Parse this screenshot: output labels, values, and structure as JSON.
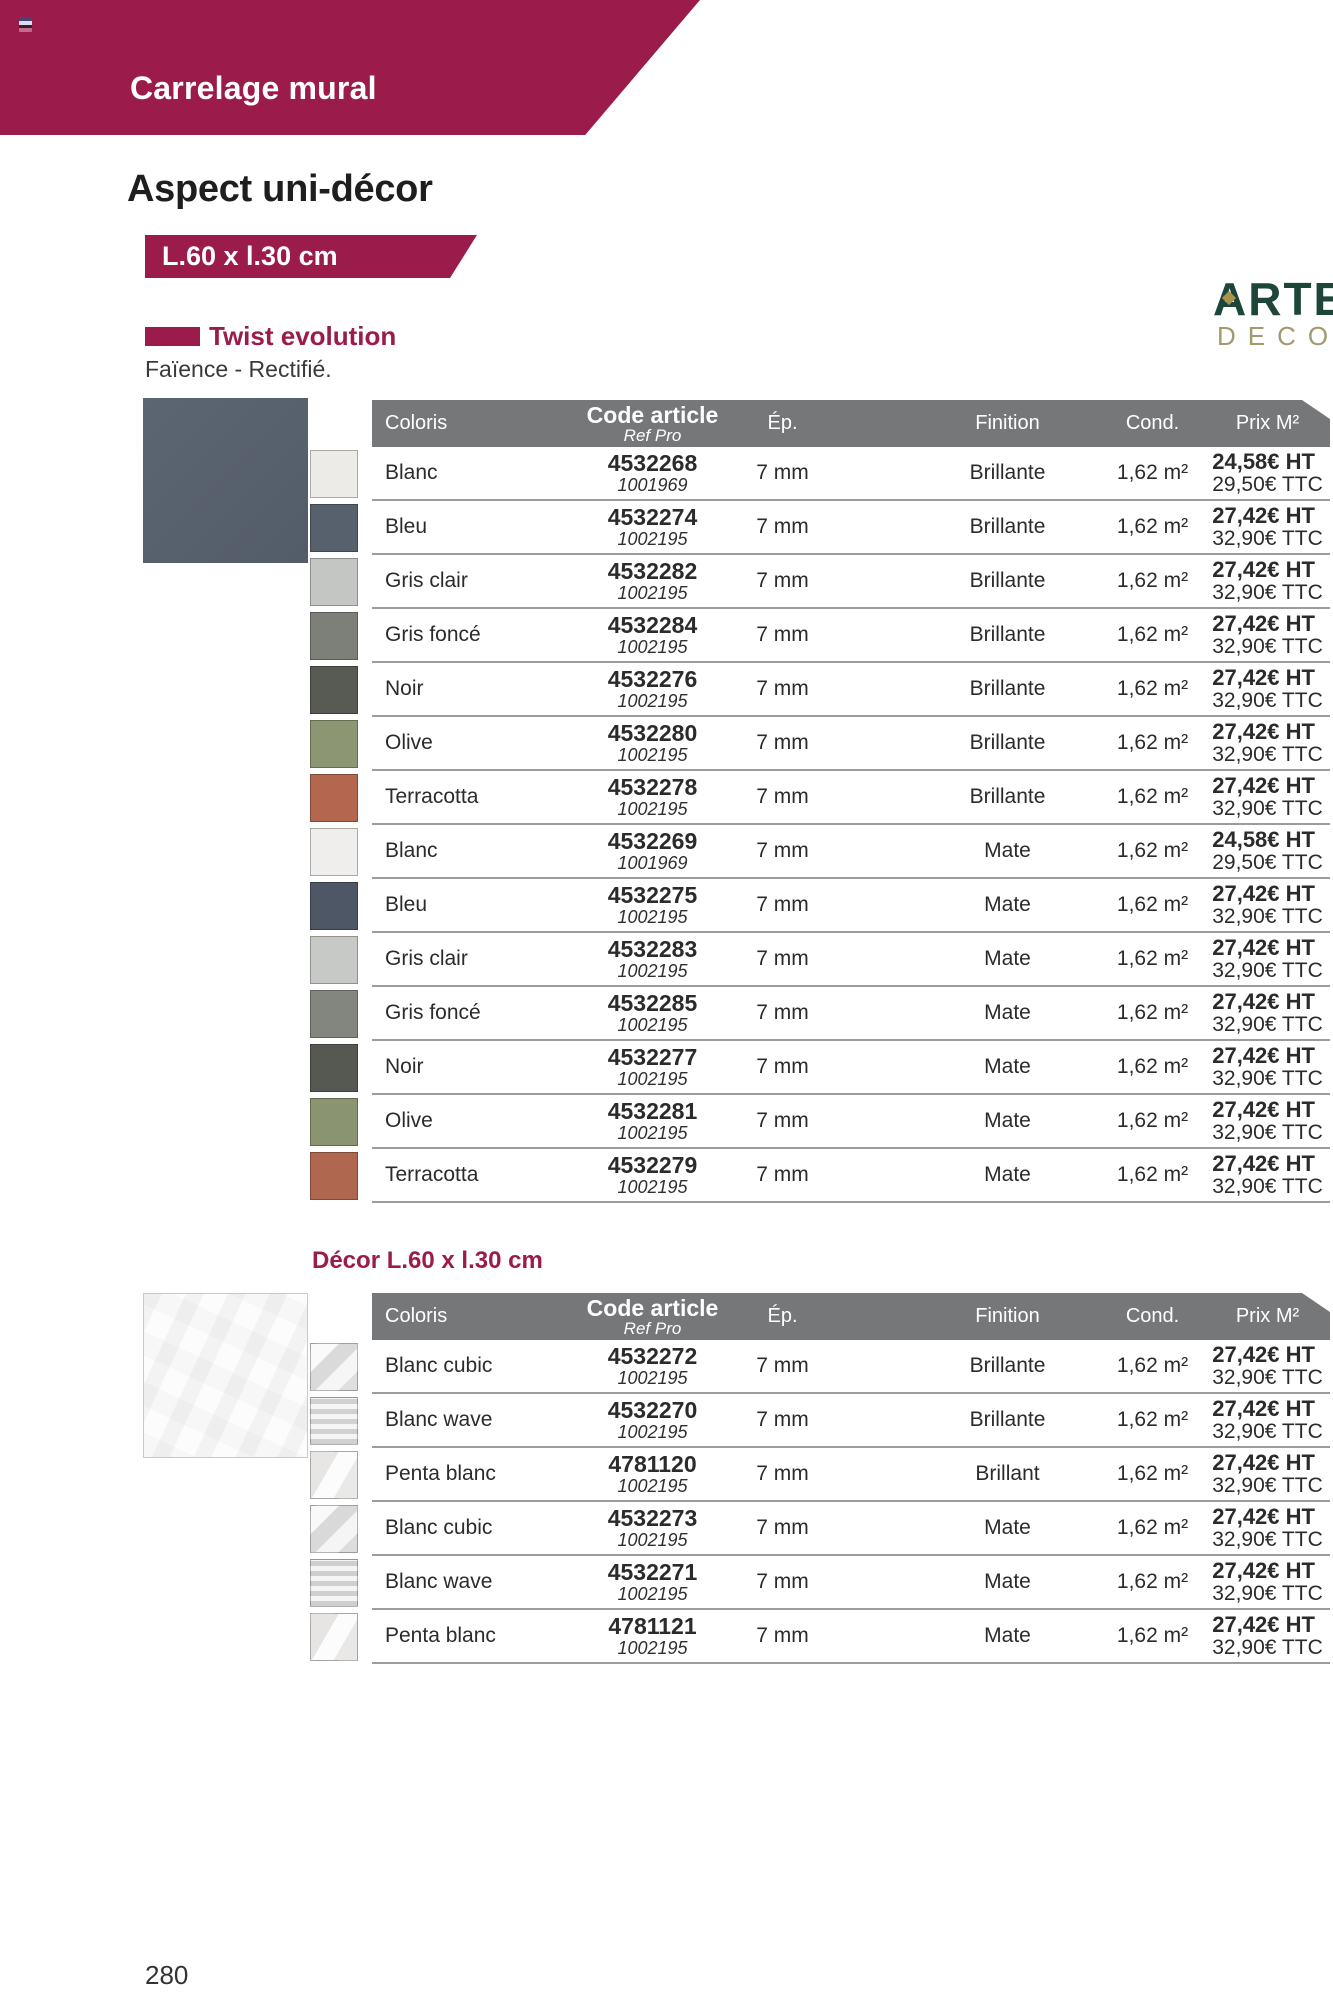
{
  "page": {
    "banner_title": "Carrelage mural",
    "section_title": "Aspect uni-décor",
    "size_label": "L.60 x l.30 cm",
    "collection_name": "Twist evolution",
    "material_note": "Faïence - Rectifié.",
    "page_number": "280"
  },
  "brand": {
    "line1": "ARTE",
    "line2": "DECO"
  },
  "colors": {
    "accent": "#9b1c4b",
    "table_header_bg": "#767779",
    "brand_green": "#1d453a",
    "brand_olive": "#a29a6d",
    "tile_photo": "#59626f"
  },
  "table_headers": {
    "coloris": "Coloris",
    "code_article": "Code article",
    "ref_pro": "Ref Pro",
    "ep": "Ép.",
    "finition": "Finition",
    "cond": "Cond.",
    "prix": "Prix M²"
  },
  "uni_table": {
    "rows": [
      {
        "coloris": "Blanc",
        "code": "4532268",
        "ref": "1001969",
        "ep": "7 mm",
        "finition": "Brillante",
        "cond": "1,62 m²",
        "prix_ht": "24,58€ HT",
        "prix_ttc": "29,50€ TTC",
        "swatch": "#edebe7",
        "texture": ""
      },
      {
        "coloris": "Bleu",
        "code": "4532274",
        "ref": "1002195",
        "ep": "7 mm",
        "finition": "Brillante",
        "cond": "1,62 m²",
        "prix_ht": "27,42€ HT",
        "prix_ttc": "32,90€ TTC",
        "swatch": "#57616e",
        "texture": ""
      },
      {
        "coloris": "Gris clair",
        "code": "4532282",
        "ref": "1002195",
        "ep": "7 mm",
        "finition": "Brillante",
        "cond": "1,62 m²",
        "prix_ht": "27,42€ HT",
        "prix_ttc": "32,90€ TTC",
        "swatch": "#c4c6c3",
        "texture": ""
      },
      {
        "coloris": "Gris foncé",
        "code": "4532284",
        "ref": "1002195",
        "ep": "7 mm",
        "finition": "Brillante",
        "cond": "1,62 m²",
        "prix_ht": "27,42€ HT",
        "prix_ttc": "32,90€ TTC",
        "swatch": "#7d8079",
        "texture": ""
      },
      {
        "coloris": "Noir",
        "code": "4532276",
        "ref": "1002195",
        "ep": "7 mm",
        "finition": "Brillante",
        "cond": "1,62 m²",
        "prix_ht": "27,42€ HT",
        "prix_ttc": "32,90€ TTC",
        "swatch": "#585b54",
        "texture": ""
      },
      {
        "coloris": "Olive",
        "code": "4532280",
        "ref": "1002195",
        "ep": "7 mm",
        "finition": "Brillante",
        "cond": "1,62 m²",
        "prix_ht": "27,42€ HT",
        "prix_ttc": "32,90€ TTC",
        "swatch": "#8d9672",
        "texture": ""
      },
      {
        "coloris": "Terracotta",
        "code": "4532278",
        "ref": "1002195",
        "ep": "7 mm",
        "finition": "Brillante",
        "cond": "1,62 m²",
        "prix_ht": "27,42€ HT",
        "prix_ttc": "32,90€ TTC",
        "swatch": "#b3674e",
        "texture": ""
      },
      {
        "coloris": "Blanc",
        "code": "4532269",
        "ref": "1001969",
        "ep": "7 mm",
        "finition": "Mate",
        "cond": "1,62 m²",
        "prix_ht": "24,58€ HT",
        "prix_ttc": "29,50€ TTC",
        "swatch": "#f0eeec",
        "texture": ""
      },
      {
        "coloris": "Bleu",
        "code": "4532275",
        "ref": "1002195",
        "ep": "7 mm",
        "finition": "Mate",
        "cond": "1,62 m²",
        "prix_ht": "27,42€ HT",
        "prix_ttc": "32,90€ TTC",
        "swatch": "#4d5766",
        "texture": ""
      },
      {
        "coloris": "Gris clair",
        "code": "4532283",
        "ref": "1002195",
        "ep": "7 mm",
        "finition": "Mate",
        "cond": "1,62 m²",
        "prix_ht": "27,42€ HT",
        "prix_ttc": "32,90€ TTC",
        "swatch": "#c7c9c6",
        "texture": ""
      },
      {
        "coloris": "Gris foncé",
        "code": "4532285",
        "ref": "1002195",
        "ep": "7 mm",
        "finition": "Mate",
        "cond": "1,62 m²",
        "prix_ht": "27,42€ HT",
        "prix_ttc": "32,90€ TTC",
        "swatch": "#83867f",
        "texture": ""
      },
      {
        "coloris": "Noir",
        "code": "4532277",
        "ref": "1002195",
        "ep": "7 mm",
        "finition": "Mate",
        "cond": "1,62 m²",
        "prix_ht": "27,42€ HT",
        "prix_ttc": "32,90€ TTC",
        "swatch": "#565952",
        "texture": ""
      },
      {
        "coloris": "Olive",
        "code": "4532281",
        "ref": "1002195",
        "ep": "7 mm",
        "finition": "Mate",
        "cond": "1,62 m²",
        "prix_ht": "27,42€ HT",
        "prix_ttc": "32,90€ TTC",
        "swatch": "#8b9470",
        "texture": ""
      },
      {
        "coloris": "Terracotta",
        "code": "4532279",
        "ref": "1002195",
        "ep": "7 mm",
        "finition": "Mate",
        "cond": "1,62 m²",
        "prix_ht": "27,42€ HT",
        "prix_ttc": "32,90€ TTC",
        "swatch": "#b06750",
        "texture": ""
      }
    ]
  },
  "decor_table": {
    "title": "Décor L.60 x l.30 cm",
    "rows": [
      {
        "coloris": "Blanc cubic",
        "code": "4532272",
        "ref": "1002195",
        "ep": "7 mm",
        "finition": "Brillante",
        "cond": "1,62 m²",
        "prix_ht": "27,42€ HT",
        "prix_ttc": "32,90€ TTC",
        "swatch": "#ebebeb",
        "texture": "cubic"
      },
      {
        "coloris": "Blanc wave",
        "code": "4532270",
        "ref": "1002195",
        "ep": "7 mm",
        "finition": "Brillante",
        "cond": "1,62 m²",
        "prix_ht": "27,42€ HT",
        "prix_ttc": "32,90€ TTC",
        "swatch": "#e3e3e3",
        "texture": "wave"
      },
      {
        "coloris": "Penta blanc",
        "code": "4781120",
        "ref": "1002195",
        "ep": "7 mm",
        "finition": "Brillant",
        "cond": "1,62 m²",
        "prix_ht": "27,42€ HT",
        "prix_ttc": "32,90€ TTC",
        "swatch": "#f3f2f0",
        "texture": "penta"
      },
      {
        "coloris": "Blanc cubic",
        "code": "4532273",
        "ref": "1002195",
        "ep": "7 mm",
        "finition": "Mate",
        "cond": "1,62 m²",
        "prix_ht": "27,42€ HT",
        "prix_ttc": "32,90€ TTC",
        "swatch": "#e9e9e9",
        "texture": "cubic"
      },
      {
        "coloris": "Blanc wave",
        "code": "4532271",
        "ref": "1002195",
        "ep": "7 mm",
        "finition": "Mate",
        "cond": "1,62 m²",
        "prix_ht": "27,42€ HT",
        "prix_ttc": "32,90€ TTC",
        "swatch": "#e1e1e1",
        "texture": "wave"
      },
      {
        "coloris": "Penta blanc",
        "code": "4781121",
        "ref": "1002195",
        "ep": "7 mm",
        "finition": "Mate",
        "cond": "1,62 m²",
        "prix_ht": "27,42€ HT",
        "prix_ttc": "32,90€ TTC",
        "swatch": "#f2f1ef",
        "texture": "penta"
      }
    ]
  }
}
